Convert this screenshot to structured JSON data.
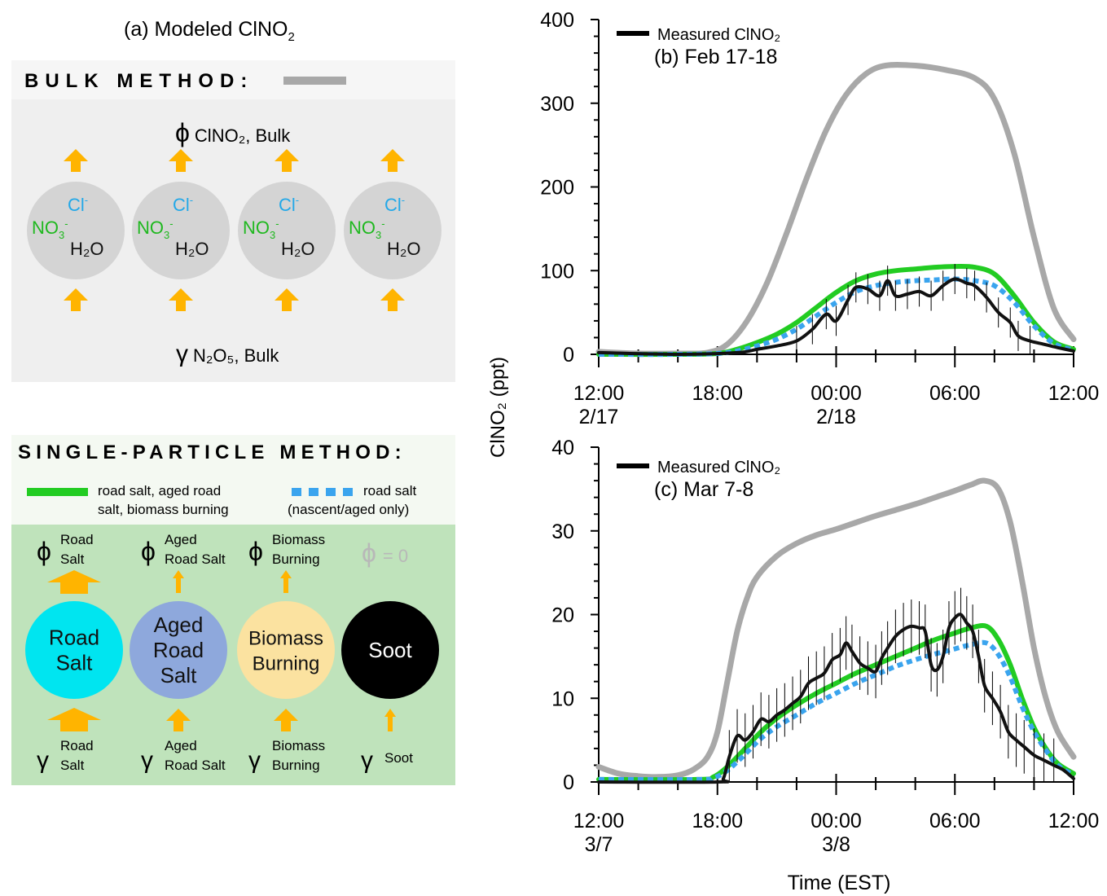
{
  "panel_a": {
    "title": "(a) Modeled ClNO",
    "title_sub": "2",
    "bulk": {
      "heading": "BULK METHOD:",
      "legend_color": "#a8a8a8",
      "phi_label": "ClNO₂, Bulk",
      "gamma_label": "N₂O₅, Bulk",
      "particle_color": "#d4d4d4",
      "particles": [
        {
          "cl": "Cl",
          "no3": "NO3",
          "h2o": "H₂O"
        },
        {
          "cl": "Cl",
          "no3": "NO3",
          "h2o": "H₂O"
        },
        {
          "cl": "Cl",
          "no3": "NO3",
          "h2o": "H₂O"
        },
        {
          "cl": "Cl",
          "no3": "NO3",
          "h2o": "H₂O"
        }
      ]
    },
    "single": {
      "heading": "SINGLE-PARTICLE METHOD:",
      "legend_green_line1": "road salt, aged road",
      "legend_green_line2": "salt, biomass burning",
      "legend_blue_line1": "road salt",
      "legend_blue_line2": "(nascent/aged only)",
      "phi_zero": "= 0",
      "particles": [
        {
          "line1": "Road",
          "line2": "Salt",
          "line3": "",
          "color": "#00e5f0",
          "text_color": "#111111",
          "phi1": "Road",
          "phi2": "Salt",
          "gamma1": "Road",
          "gamma2": "Salt"
        },
        {
          "line1": "Aged",
          "line2": "Road",
          "line3": "Salt",
          "color": "#8ea8dc",
          "text_color": "#111111",
          "phi1": "Aged",
          "phi2": "Road Salt",
          "gamma1": "Aged",
          "gamma2": "Road Salt"
        },
        {
          "line1": "Biomass",
          "line2": "Burning",
          "line3": "",
          "color": "#fbe2a0",
          "text_color": "#111111",
          "phi1": "Biomass",
          "phi2": "Burning",
          "gamma1": "Biomass",
          "gamma2": "Burning"
        },
        {
          "line1": "Soot",
          "line2": "",
          "line3": "",
          "color": "#000000",
          "text_color": "#ffffff",
          "phi1": "",
          "phi2": "",
          "gamma1": "Soot",
          "gamma2": ""
        }
      ]
    }
  },
  "colors": {
    "measured": "#111111",
    "bulk": "#a8a8a8",
    "single": "#22cc22",
    "single_blue": "#3aa4ee",
    "arrow": "#ffb400",
    "cl": "#23a8e8",
    "no3": "#1fb81f",
    "bulk_panel": "#efefef",
    "bulk_header": "#f6f6f6",
    "single_header": "#f4f9f2",
    "single_panel": "#bfe3bb"
  },
  "ylabel": "ClNO₂ (ppt)",
  "xlabel": "Time (EST)",
  "chart_data": [
    {
      "type": "line",
      "panel_label": "(b) Feb 17-18",
      "legend": "Measured ClNO₂",
      "x_ticks": [
        {
          "h": 0,
          "l1": "12:00",
          "l2": "2/17"
        },
        {
          "h": 6,
          "l1": "18:00",
          "l2": ""
        },
        {
          "h": 12,
          "l1": "00:00",
          "l2": "2/18"
        },
        {
          "h": 18,
          "l1": "06:00",
          "l2": ""
        },
        {
          "h": 24,
          "l1": "12:00",
          "l2": ""
        }
      ],
      "xlim": [
        0,
        24
      ],
      "ylim": [
        0,
        400
      ],
      "y_ticks": [
        0,
        100,
        200,
        300,
        400
      ],
      "series": [
        {
          "key": "bulk",
          "points": [
            [
              0,
              3
            ],
            [
              2,
              1
            ],
            [
              4,
              1
            ],
            [
              5.5,
              2
            ],
            [
              6.5,
              12
            ],
            [
              7.5,
              40
            ],
            [
              8.5,
              85
            ],
            [
              9.5,
              145
            ],
            [
              10.5,
              210
            ],
            [
              11.5,
              268
            ],
            [
              12.5,
              310
            ],
            [
              13.5,
              335
            ],
            [
              14.5,
              345
            ],
            [
              16,
              345
            ],
            [
              17.5,
              340
            ],
            [
              19,
              330
            ],
            [
              20,
              305
            ],
            [
              21,
              240
            ],
            [
              22,
              140
            ],
            [
              23,
              55
            ],
            [
              24,
              18
            ]
          ]
        },
        {
          "key": "single",
          "points": [
            [
              0,
              0
            ],
            [
              4,
              0
            ],
            [
              6,
              1
            ],
            [
              7,
              6
            ],
            [
              8,
              14
            ],
            [
              9,
              24
            ],
            [
              10,
              38
            ],
            [
              11,
              56
            ],
            [
              12,
              74
            ],
            [
              13,
              88
            ],
            [
              14,
              96
            ],
            [
              15,
              100
            ],
            [
              16,
              102
            ],
            [
              17,
              104
            ],
            [
              18,
              105
            ],
            [
              19,
              104
            ],
            [
              20,
              96
            ],
            [
              21,
              70
            ],
            [
              22,
              38
            ],
            [
              23,
              15
            ],
            [
              24,
              6
            ]
          ]
        },
        {
          "key": "single_blue",
          "points": [
            [
              0,
              0
            ],
            [
              4,
              0
            ],
            [
              6,
              1
            ],
            [
              7,
              4
            ],
            [
              8,
              10
            ],
            [
              9,
              18
            ],
            [
              10,
              30
            ],
            [
              11,
              46
            ],
            [
              12,
              62
            ],
            [
              13,
              75
            ],
            [
              14,
              82
            ],
            [
              15,
              86
            ],
            [
              16,
              88
            ],
            [
              17,
              89
            ],
            [
              18,
              90
            ],
            [
              19,
              88
            ],
            [
              20,
              82
            ],
            [
              21,
              62
            ],
            [
              22,
              34
            ],
            [
              23,
              13
            ],
            [
              24,
              5
            ]
          ]
        },
        {
          "key": "measured",
          "points": [
            [
              0,
              2
            ],
            [
              4,
              0
            ],
            [
              7,
              2
            ],
            [
              8,
              6
            ],
            [
              9,
              10
            ],
            [
              10,
              16
            ],
            [
              10.8,
              30
            ],
            [
              11.5,
              48
            ],
            [
              12,
              40
            ],
            [
              12.6,
              65
            ],
            [
              13,
              80
            ],
            [
              13.6,
              78
            ],
            [
              14.2,
              70
            ],
            [
              14.6,
              88
            ],
            [
              15,
              70
            ],
            [
              15.6,
              72
            ],
            [
              16.2,
              75
            ],
            [
              16.8,
              70
            ],
            [
              17.4,
              82
            ],
            [
              18,
              90
            ],
            [
              18.6,
              85
            ],
            [
              19,
              82
            ],
            [
              19.6,
              68
            ],
            [
              20.2,
              50
            ],
            [
              20.8,
              38
            ],
            [
              21.2,
              22
            ],
            [
              21.8,
              16
            ],
            [
              22.5,
              12
            ],
            [
              23.2,
              8
            ],
            [
              24,
              4
            ]
          ]
        }
      ]
    },
    {
      "type": "line",
      "panel_label": "(c) Mar 7-8",
      "legend": "Measured ClNO₂",
      "x_ticks": [
        {
          "h": 0,
          "l1": "12:00",
          "l2": "3/7"
        },
        {
          "h": 6,
          "l1": "18:00",
          "l2": ""
        },
        {
          "h": 12,
          "l1": "00:00",
          "l2": "3/8"
        },
        {
          "h": 18,
          "l1": "06:00",
          "l2": ""
        },
        {
          "h": 24,
          "l1": "12:00",
          "l2": ""
        }
      ],
      "xlim": [
        0,
        24
      ],
      "ylim": [
        0,
        40
      ],
      "y_ticks": [
        0,
        10,
        20,
        30,
        40
      ],
      "series": [
        {
          "key": "bulk",
          "points": [
            [
              0,
              1.8
            ],
            [
              1,
              1
            ],
            [
              2,
              0.7
            ],
            [
              3,
              0.6
            ],
            [
              4,
              0.8
            ],
            [
              4.8,
              1.5
            ],
            [
              5.5,
              3
            ],
            [
              6,
              6
            ],
            [
              6.5,
              12
            ],
            [
              7,
              18
            ],
            [
              7.5,
              22
            ],
            [
              8,
              24.5
            ],
            [
              9,
              27
            ],
            [
              10,
              28.5
            ],
            [
              11,
              29.5
            ],
            [
              12,
              30.2
            ],
            [
              13,
              31
            ],
            [
              14,
              31.8
            ],
            [
              15,
              32.5
            ],
            [
              16,
              33.2
            ],
            [
              17,
              34
            ],
            [
              18,
              34.8
            ],
            [
              18.8,
              35.5
            ],
            [
              19.5,
              36
            ],
            [
              20.2,
              35
            ],
            [
              20.8,
              31
            ],
            [
              21.4,
              24
            ],
            [
              22,
              16
            ],
            [
              22.6,
              10
            ],
            [
              23.2,
              6
            ],
            [
              24,
              3
            ]
          ]
        },
        {
          "key": "single",
          "points": [
            [
              0,
              0.3
            ],
            [
              5,
              0.3
            ],
            [
              5.8,
              0.6
            ],
            [
              6.4,
              1.6
            ],
            [
              7,
              3
            ],
            [
              7.6,
              4.5
            ],
            [
              8.2,
              6
            ],
            [
              9,
              7.6
            ],
            [
              10,
              9.2
            ],
            [
              11,
              10.6
            ],
            [
              12,
              11.8
            ],
            [
              13,
              13
            ],
            [
              14,
              14
            ],
            [
              15,
              15
            ],
            [
              16,
              16
            ],
            [
              17,
              17
            ],
            [
              18,
              17.8
            ],
            [
              18.8,
              18.4
            ],
            [
              19.6,
              18.6
            ],
            [
              20.2,
              17
            ],
            [
              20.8,
              14
            ],
            [
              21.4,
              10
            ],
            [
              22,
              6.5
            ],
            [
              22.6,
              4
            ],
            [
              23.2,
              2.2
            ],
            [
              24,
              1
            ]
          ]
        },
        {
          "key": "single_blue",
          "points": [
            [
              0,
              0.3
            ],
            [
              5,
              0.3
            ],
            [
              5.8,
              0.5
            ],
            [
              6.4,
              1.2
            ],
            [
              7,
              2.4
            ],
            [
              7.6,
              3.8
            ],
            [
              8.2,
              5.2
            ],
            [
              9,
              6.6
            ],
            [
              10,
              8
            ],
            [
              11,
              9.4
            ],
            [
              12,
              10.6
            ],
            [
              13,
              11.8
            ],
            [
              14,
              12.8
            ],
            [
              15,
              13.8
            ],
            [
              16,
              14.6
            ],
            [
              17,
              15.3
            ],
            [
              18,
              15.9
            ],
            [
              18.8,
              16.4
            ],
            [
              19.6,
              16.6
            ],
            [
              20.2,
              15.2
            ],
            [
              20.8,
              12.5
            ],
            [
              21.4,
              9
            ],
            [
              22,
              6
            ],
            [
              22.6,
              3.8
            ],
            [
              23.2,
              2
            ],
            [
              24,
              0.8
            ]
          ]
        },
        {
          "key": "measured",
          "points": [
            [
              0,
              0
            ],
            [
              6,
              0
            ],
            [
              6.3,
              0.4
            ],
            [
              6.6,
              3
            ],
            [
              7,
              5.5
            ],
            [
              7.4,
              5
            ],
            [
              7.8,
              6
            ],
            [
              8.2,
              7.5
            ],
            [
              8.6,
              7.2
            ],
            [
              9,
              8
            ],
            [
              9.4,
              8.6
            ],
            [
              9.8,
              9.4
            ],
            [
              10.2,
              10.2
            ],
            [
              10.6,
              11.8
            ],
            [
              11,
              12.4
            ],
            [
              11.4,
              13
            ],
            [
              11.8,
              14.6
            ],
            [
              12.2,
              15.2
            ],
            [
              12.5,
              16.6
            ],
            [
              12.8,
              15.6
            ],
            [
              13.2,
              14.2
            ],
            [
              13.6,
              13.6
            ],
            [
              14,
              13.2
            ],
            [
              14.3,
              14.8
            ],
            [
              14.6,
              16
            ],
            [
              15,
              17.4
            ],
            [
              15.4,
              18.2
            ],
            [
              15.8,
              18.6
            ],
            [
              16.2,
              18.4
            ],
            [
              16.5,
              18
            ],
            [
              16.8,
              14
            ],
            [
              17.1,
              13.4
            ],
            [
              17.4,
              15
            ],
            [
              17.7,
              18.4
            ],
            [
              18,
              19.6
            ],
            [
              18.3,
              20
            ],
            [
              18.6,
              19
            ],
            [
              18.9,
              18
            ],
            [
              19.2,
              15
            ],
            [
              19.5,
              11.5
            ],
            [
              19.9,
              10
            ],
            [
              20.3,
              8.4
            ],
            [
              20.7,
              6
            ],
            [
              21.1,
              5
            ],
            [
              21.5,
              4.2
            ],
            [
              22,
              3.2
            ],
            [
              22.5,
              2.6
            ],
            [
              23,
              2
            ],
            [
              23.5,
              1.4
            ],
            [
              24,
              0.4
            ]
          ]
        }
      ]
    }
  ]
}
